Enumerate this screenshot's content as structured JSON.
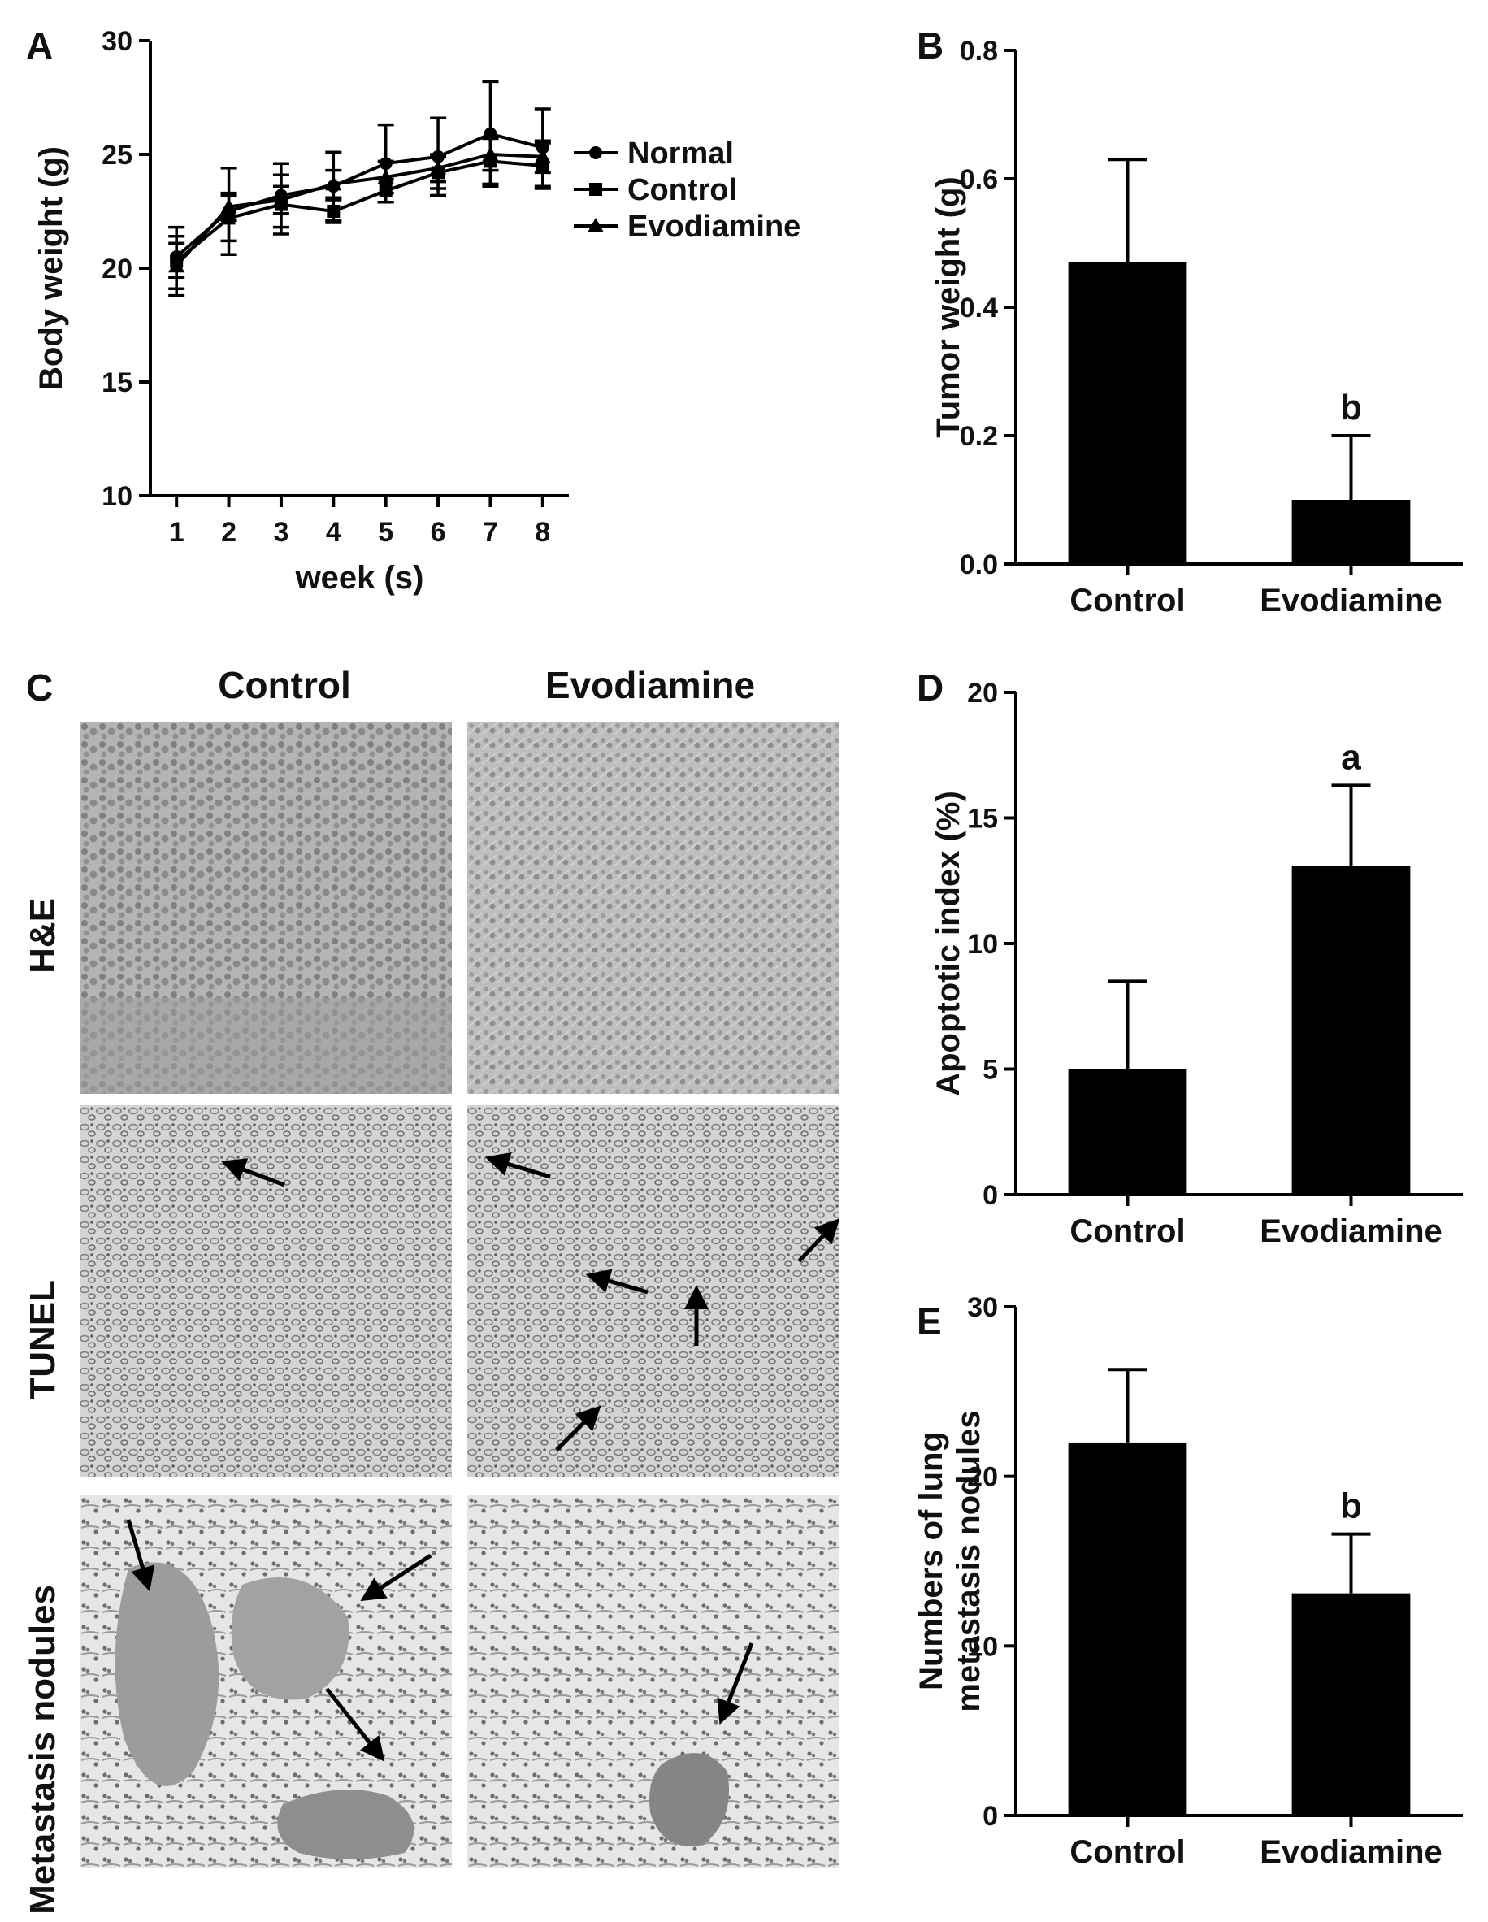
{
  "figure": {
    "panel_labels": {
      "A": "A",
      "B": "B",
      "C": "C",
      "D": "D",
      "E": "E"
    }
  },
  "chart_data": [
    {
      "panel": "A",
      "type": "line",
      "xlabel": "week (s)",
      "ylabel": "Body weight (g)",
      "x": [
        1,
        2,
        3,
        4,
        5,
        6,
        7,
        8
      ],
      "ylim": [
        10,
        30
      ],
      "yticks": [
        10,
        15,
        20,
        25,
        30
      ],
      "legend_position": "right",
      "series": [
        {
          "name": "Normal",
          "marker": "circle",
          "values": [
            20.5,
            22.5,
            23.2,
            23.6,
            24.6,
            24.9,
            25.9,
            25.3
          ],
          "errors": [
            0.9,
            1.9,
            1.4,
            1.5,
            1.7,
            1.7,
            2.3,
            1.7
          ]
        },
        {
          "name": "Control",
          "marker": "square",
          "values": [
            20.3,
            22.2,
            22.8,
            22.5,
            23.4,
            24.2,
            24.7,
            24.5
          ],
          "errors": [
            1.5,
            1.0,
            1.3,
            0.5,
            0.5,
            0.7,
            1.0,
            1.0
          ]
        },
        {
          "name": "Evodiamine",
          "marker": "triangle",
          "values": [
            20.1,
            22.7,
            23.0,
            23.7,
            24.0,
            24.4,
            25.0,
            24.9
          ],
          "errors": [
            1.0,
            0.6,
            0.6,
            0.6,
            0.7,
            0.6,
            0.7,
            0.7
          ]
        }
      ]
    },
    {
      "panel": "B",
      "type": "bar",
      "ylabel": "Tumor weight (g)",
      "categories": [
        "Control",
        "Evodiamine"
      ],
      "values": [
        0.47,
        0.1
      ],
      "errors": [
        0.16,
        0.1
      ],
      "annotations": [
        "",
        "b"
      ],
      "ylim": [
        0,
        0.8
      ],
      "yticks": [
        "0.0",
        "0.2",
        "0.4",
        "0.6",
        "0.8"
      ]
    },
    {
      "panel": "D",
      "type": "bar",
      "ylabel": "Apoptotic index  (%)",
      "categories": [
        "Control",
        "Evodiamine"
      ],
      "values": [
        5.0,
        13.1
      ],
      "errors": [
        3.5,
        3.2
      ],
      "annotations": [
        "",
        "a"
      ],
      "ylim": [
        0,
        20
      ],
      "yticks": [
        "0",
        "5",
        "10",
        "15",
        "20"
      ]
    },
    {
      "panel": "E",
      "type": "bar",
      "ylabel": [
        "Numbers of lung",
        "metastasis nodules"
      ],
      "categories": [
        "Control",
        "Evodiamine"
      ],
      "values": [
        22.0,
        13.1
      ],
      "errors": [
        4.3,
        3.5
      ],
      "annotations": [
        "",
        "b"
      ],
      "ylim": [
        0,
        30
      ],
      "yticks": [
        "0",
        "10",
        "20",
        "30"
      ]
    }
  ],
  "micrographs": {
    "columns": [
      "Control",
      "Evodiamine"
    ],
    "rows": [
      "H&E",
      "TUNEL",
      "Metastasis nodules"
    ]
  },
  "colors": {
    "ink": "#000000",
    "he_tissue": "#a9a9a9",
    "tunel_tissue": "#c9c9c9",
    "lung_bg": "#e4e4e4"
  }
}
